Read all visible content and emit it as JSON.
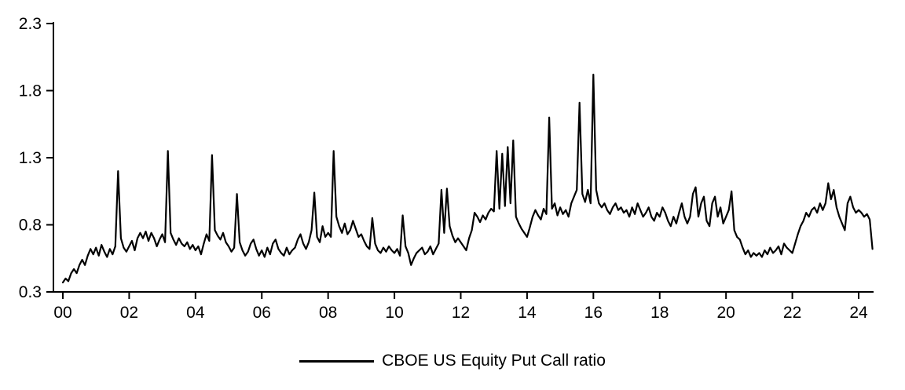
{
  "chart_data": {
    "type": "line",
    "title": "",
    "legend_label": "CBOE US Equity Put Call ratio",
    "legend_position": "bottom-center",
    "line_color": "#000000",
    "grid": false,
    "ylim": [
      0.3,
      2.3
    ],
    "xlim": [
      2000,
      2024.7
    ],
    "y_ticks": [
      0.3,
      0.8,
      1.3,
      1.8,
      2.3
    ],
    "y_tick_labels": [
      "0.3",
      "0.8",
      "1.3",
      "1.8",
      "2.3"
    ],
    "x_tick_years": [
      2000,
      2002,
      2004,
      2006,
      2008,
      2010,
      2012,
      2014,
      2016,
      2018,
      2020,
      2022,
      2024
    ],
    "x_tick_labels": [
      "00",
      "02",
      "04",
      "06",
      "08",
      "10",
      "12",
      "14",
      "16",
      "18",
      "20",
      "22",
      "24"
    ],
    "x_start": 2000,
    "x_step": 0.0833333,
    "series": [
      {
        "name": "CBOE US Equity Put Call ratio",
        "values": [
          0.37,
          0.4,
          0.38,
          0.44,
          0.47,
          0.44,
          0.5,
          0.54,
          0.5,
          0.57,
          0.62,
          0.58,
          0.63,
          0.57,
          0.65,
          0.6,
          0.56,
          0.62,
          0.58,
          0.64,
          1.2,
          0.7,
          0.63,
          0.6,
          0.64,
          0.68,
          0.61,
          0.7,
          0.74,
          0.7,
          0.75,
          0.68,
          0.74,
          0.7,
          0.64,
          0.69,
          0.73,
          0.67,
          1.35,
          0.74,
          0.69,
          0.65,
          0.7,
          0.66,
          0.64,
          0.67,
          0.62,
          0.65,
          0.61,
          0.64,
          0.58,
          0.66,
          0.73,
          0.68,
          1.32,
          0.76,
          0.72,
          0.69,
          0.74,
          0.67,
          0.64,
          0.6,
          0.63,
          1.03,
          0.67,
          0.61,
          0.57,
          0.6,
          0.66,
          0.69,
          0.62,
          0.57,
          0.61,
          0.56,
          0.63,
          0.58,
          0.66,
          0.69,
          0.62,
          0.59,
          0.57,
          0.63,
          0.58,
          0.61,
          0.63,
          0.69,
          0.73,
          0.66,
          0.62,
          0.67,
          0.76,
          1.04,
          0.71,
          0.67,
          0.79,
          0.71,
          0.74,
          0.71,
          1.35,
          0.86,
          0.79,
          0.74,
          0.81,
          0.73,
          0.76,
          0.83,
          0.77,
          0.71,
          0.73,
          0.68,
          0.64,
          0.62,
          0.85,
          0.66,
          0.61,
          0.59,
          0.63,
          0.6,
          0.64,
          0.61,
          0.59,
          0.62,
          0.57,
          0.87,
          0.64,
          0.59,
          0.5,
          0.55,
          0.59,
          0.61,
          0.63,
          0.58,
          0.6,
          0.64,
          0.58,
          0.62,
          0.66,
          1.06,
          0.74,
          1.07,
          0.79,
          0.72,
          0.67,
          0.7,
          0.67,
          0.64,
          0.61,
          0.7,
          0.76,
          0.89,
          0.86,
          0.82,
          0.87,
          0.84,
          0.89,
          0.92,
          0.9,
          1.35,
          0.92,
          1.33,
          0.94,
          1.38,
          0.96,
          1.43,
          0.86,
          0.81,
          0.77,
          0.74,
          0.71,
          0.78,
          0.86,
          0.91,
          0.87,
          0.84,
          0.92,
          0.88,
          1.6,
          0.92,
          0.96,
          0.87,
          0.93,
          0.88,
          0.91,
          0.86,
          0.96,
          1.01,
          1.06,
          1.71,
          1.03,
          0.97,
          1.06,
          0.96,
          1.92,
          1.06,
          0.96,
          0.93,
          0.96,
          0.91,
          0.88,
          0.93,
          0.96,
          0.91,
          0.93,
          0.89,
          0.91,
          0.86,
          0.93,
          0.88,
          0.96,
          0.91,
          0.86,
          0.89,
          0.93,
          0.86,
          0.83,
          0.89,
          0.86,
          0.93,
          0.89,
          0.83,
          0.79,
          0.86,
          0.81,
          0.89,
          0.96,
          0.86,
          0.81,
          0.86,
          1.03,
          1.08,
          0.86,
          0.96,
          1.01,
          0.83,
          0.79,
          0.96,
          1.01,
          0.86,
          0.93,
          0.81,
          0.86,
          0.91,
          1.05,
          0.76,
          0.71,
          0.69,
          0.63,
          0.58,
          0.61,
          0.56,
          0.59,
          0.57,
          0.59,
          0.56,
          0.61,
          0.58,
          0.63,
          0.59,
          0.61,
          0.64,
          0.58,
          0.66,
          0.63,
          0.61,
          0.59,
          0.66,
          0.73,
          0.79,
          0.83,
          0.89,
          0.86,
          0.91,
          0.93,
          0.89,
          0.96,
          0.91,
          0.96,
          1.11,
          0.99,
          1.06,
          0.93,
          0.86,
          0.81,
          0.76,
          0.96,
          1.01,
          0.93,
          0.89,
          0.91,
          0.89,
          0.86,
          0.88,
          0.84,
          0.62
        ]
      }
    ]
  }
}
